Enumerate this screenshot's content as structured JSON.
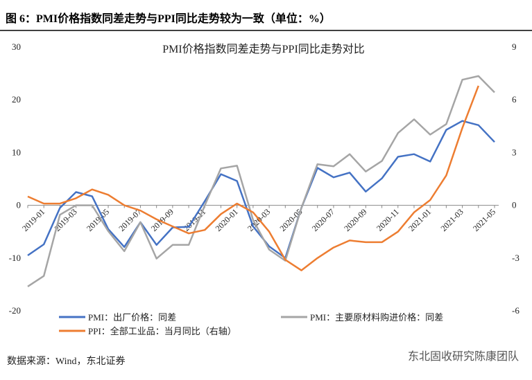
{
  "figure_title": "图 6：PMI价格指数同差走势与PPI同比走势较为一致（单位：%）",
  "chart_data": {
    "type": "line",
    "title": "PMI价格指数同差走势与PPI同比走势对比",
    "categories": [
      null,
      "2019-01",
      null,
      "2019-03",
      null,
      "2019-05",
      null,
      "2019-07",
      null,
      "2019-09",
      null,
      "2019-11",
      null,
      "2020-01",
      null,
      "2020-03",
      null,
      "2020-05",
      null,
      "2020-07",
      null,
      "2020-09",
      null,
      "2020-11",
      null,
      "2021-01",
      null,
      "2021-03",
      null,
      "2021-05"
    ],
    "series": [
      {
        "name": "PMI：出厂价格：同差",
        "color": "#4472c4",
        "values": [
          -9.5,
          -7.4,
          -0.5,
          2.5,
          1.7,
          -4.5,
          -7.9,
          -3.2,
          -7.5,
          -4.2,
          -4.1,
          0.8,
          5.9,
          4.6,
          -4,
          -7.8,
          -10,
          -0.5,
          7.1,
          5.3,
          6.2,
          2.6,
          5.1,
          9.2,
          9.7,
          8.3,
          14.3,
          16,
          15.2,
          12
        ]
      },
      {
        "name": "PMI：主要原材料购进价格：同差",
        "color": "#a5a5a5",
        "values": [
          -15.4,
          -13.4,
          -1.8,
          0,
          0,
          -4.9,
          -8.7,
          -3.2,
          -10.1,
          -7.5,
          -7.5,
          0,
          7,
          7.5,
          -2.8,
          -8.4,
          -10.5,
          -0.5,
          7.8,
          7.4,
          9.7,
          6.4,
          8.4,
          13.7,
          16.3,
          13.4,
          15.4,
          23.8,
          24.5,
          21.4
        ]
      },
      {
        "name": "PPI：全部工业品：当月同比（右轴）",
        "color": "#ed7d31",
        "axis": "y2",
        "values": [
          0.5,
          0.1,
          0.1,
          0.4,
          0.9,
          0.6,
          0,
          -0.3,
          -0.8,
          -1.2,
          -1.6,
          -1.4,
          -0.5,
          0.1,
          -0.4,
          -1.5,
          -3.1,
          -3.7,
          -3.0,
          -2.4,
          -2.0,
          -2.1,
          -2.1,
          -1.5,
          -0.4,
          0.3,
          1.7,
          4.4,
          6.8,
          null
        ]
      }
    ],
    "ylim": [
      -20,
      30
    ],
    "yticks": [
      -20,
      -10,
      0,
      10,
      20,
      30
    ],
    "y2lim": [
      -6,
      9
    ],
    "y2ticks": [
      -6,
      -3,
      0,
      3,
      6,
      9
    ],
    "legend": "bottom"
  },
  "source": "数据来源：Wind，东北证券",
  "watermark": "东北固收研究陈康团队"
}
